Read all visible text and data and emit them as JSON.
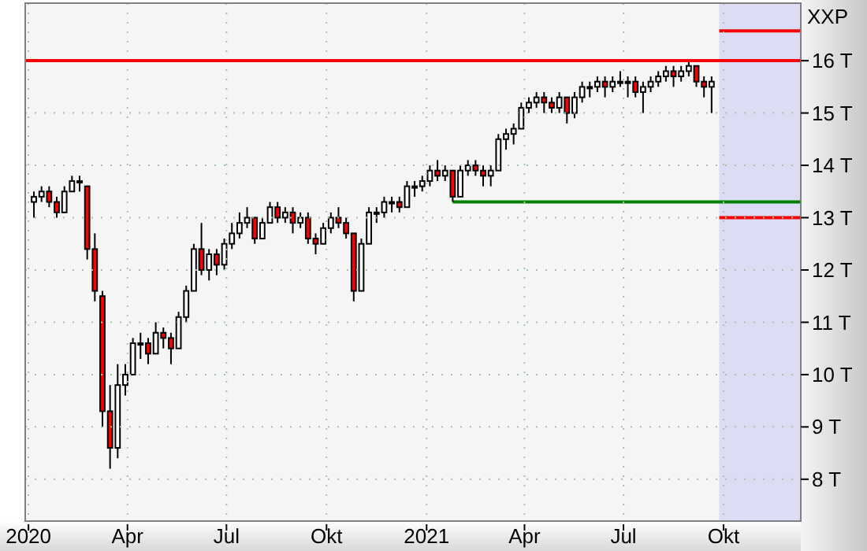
{
  "chart_data": {
    "type": "candlestick",
    "title": "XXP",
    "x": [
      "2020-01-06",
      "2020-01-13",
      "2020-01-20",
      "2020-01-27",
      "2020-02-03",
      "2020-02-10",
      "2020-02-17",
      "2020-02-24",
      "2020-03-02",
      "2020-03-09",
      "2020-03-16",
      "2020-03-23",
      "2020-03-30",
      "2020-04-06",
      "2020-04-13",
      "2020-04-20",
      "2020-04-27",
      "2020-05-04",
      "2020-05-11",
      "2020-05-18",
      "2020-05-25",
      "2020-06-01",
      "2020-06-08",
      "2020-06-15",
      "2020-06-22",
      "2020-06-29",
      "2020-07-06",
      "2020-07-13",
      "2020-07-20",
      "2020-07-27",
      "2020-08-03",
      "2020-08-10",
      "2020-08-17",
      "2020-08-24",
      "2020-08-31",
      "2020-09-07",
      "2020-09-14",
      "2020-09-21",
      "2020-09-28",
      "2020-10-05",
      "2020-10-12",
      "2020-10-19",
      "2020-10-26",
      "2020-11-02",
      "2020-11-09",
      "2020-11-16",
      "2020-11-23",
      "2020-11-30",
      "2020-12-07",
      "2020-12-14",
      "2020-12-21",
      "2020-12-28",
      "2021-01-04",
      "2021-01-11",
      "2021-01-18",
      "2021-01-25",
      "2021-02-01",
      "2021-02-08",
      "2021-02-15",
      "2021-02-22",
      "2021-03-01",
      "2021-03-08",
      "2021-03-15",
      "2021-03-22",
      "2021-03-29",
      "2021-04-05",
      "2021-04-12",
      "2021-04-19",
      "2021-04-26",
      "2021-05-03",
      "2021-05-10",
      "2021-05-17",
      "2021-05-24",
      "2021-05-31",
      "2021-06-07",
      "2021-06-14",
      "2021-06-21",
      "2021-06-28",
      "2021-07-05",
      "2021-07-12",
      "2021-07-19",
      "2021-07-26",
      "2021-08-02",
      "2021-08-09",
      "2021-08-16",
      "2021-08-23",
      "2021-08-30",
      "2021-09-06",
      "2021-09-13",
      "2021-09-20"
    ],
    "ohlc": [
      [
        13.3,
        13.5,
        13.0,
        13.4
      ],
      [
        13.4,
        13.6,
        13.3,
        13.5
      ],
      [
        13.5,
        13.6,
        13.2,
        13.3
      ],
      [
        13.3,
        13.4,
        13.0,
        13.1
      ],
      [
        13.1,
        13.6,
        13.1,
        13.5
      ],
      [
        13.5,
        13.8,
        13.5,
        13.7
      ],
      [
        13.7,
        13.8,
        13.5,
        13.7
      ],
      [
        13.6,
        13.6,
        12.2,
        12.4
      ],
      [
        12.4,
        12.7,
        11.4,
        11.6
      ],
      [
        11.5,
        11.6,
        9.0,
        9.3
      ],
      [
        9.3,
        9.8,
        8.2,
        8.6
      ],
      [
        8.6,
        10.2,
        8.4,
        9.8
      ],
      [
        9.8,
        10.2,
        9.6,
        10.0
      ],
      [
        10.0,
        10.7,
        10.0,
        10.6
      ],
      [
        10.6,
        10.8,
        10.3,
        10.6
      ],
      [
        10.6,
        10.7,
        10.2,
        10.4
      ],
      [
        10.4,
        11.0,
        10.4,
        10.8
      ],
      [
        10.8,
        10.9,
        10.5,
        10.7
      ],
      [
        10.7,
        10.8,
        10.2,
        10.5
      ],
      [
        10.5,
        11.2,
        10.5,
        11.1
      ],
      [
        11.1,
        11.7,
        11.0,
        11.6
      ],
      [
        11.6,
        12.5,
        11.6,
        12.4
      ],
      [
        12.4,
        12.9,
        11.9,
        12.0
      ],
      [
        12.0,
        12.4,
        11.8,
        12.3
      ],
      [
        12.3,
        12.4,
        11.9,
        12.1
      ],
      [
        12.1,
        12.6,
        12.0,
        12.5
      ],
      [
        12.5,
        12.9,
        12.4,
        12.7
      ],
      [
        12.7,
        13.1,
        12.6,
        12.9
      ],
      [
        12.9,
        13.2,
        12.8,
        13.0
      ],
      [
        13.0,
        13.0,
        12.5,
        12.6
      ],
      [
        12.6,
        13.0,
        12.6,
        12.9
      ],
      [
        12.9,
        13.3,
        12.9,
        13.2
      ],
      [
        13.2,
        13.3,
        12.9,
        13.0
      ],
      [
        13.0,
        13.2,
        12.9,
        13.1
      ],
      [
        13.1,
        13.2,
        12.7,
        12.9
      ],
      [
        12.9,
        13.1,
        12.8,
        13.0
      ],
      [
        13.0,
        13.1,
        12.5,
        12.6
      ],
      [
        12.6,
        12.7,
        12.3,
        12.5
      ],
      [
        12.5,
        12.9,
        12.5,
        12.8
      ],
      [
        12.8,
        13.1,
        12.7,
        13.0
      ],
      [
        13.0,
        13.2,
        12.8,
        12.9
      ],
      [
        12.9,
        13.0,
        12.6,
        12.7
      ],
      [
        12.7,
        12.7,
        11.4,
        11.6
      ],
      [
        11.6,
        12.6,
        11.6,
        12.5
      ],
      [
        12.5,
        13.2,
        12.5,
        13.1
      ],
      [
        13.1,
        13.2,
        12.9,
        13.1
      ],
      [
        13.1,
        13.4,
        13.0,
        13.3
      ],
      [
        13.3,
        13.4,
        13.1,
        13.3
      ],
      [
        13.3,
        13.4,
        13.1,
        13.2
      ],
      [
        13.2,
        13.7,
        13.2,
        13.6
      ],
      [
        13.6,
        13.7,
        13.4,
        13.6
      ],
      [
        13.6,
        13.8,
        13.5,
        13.7
      ],
      [
        13.7,
        14.0,
        13.6,
        13.9
      ],
      [
        13.9,
        14.1,
        13.7,
        13.8
      ],
      [
        13.8,
        14.0,
        13.7,
        13.9
      ],
      [
        13.9,
        13.9,
        13.3,
        13.4
      ],
      [
        13.4,
        14.0,
        13.4,
        13.9
      ],
      [
        13.9,
        14.1,
        13.8,
        14.0
      ],
      [
        14.0,
        14.1,
        13.8,
        13.9
      ],
      [
        13.9,
        14.0,
        13.6,
        13.8
      ],
      [
        13.8,
        14.0,
        13.6,
        13.9
      ],
      [
        13.9,
        14.6,
        13.9,
        14.5
      ],
      [
        14.5,
        14.7,
        14.3,
        14.6
      ],
      [
        14.6,
        14.8,
        14.4,
        14.7
      ],
      [
        14.7,
        15.2,
        14.7,
        15.1
      ],
      [
        15.1,
        15.3,
        15.0,
        15.2
      ],
      [
        15.2,
        15.4,
        15.1,
        15.3
      ],
      [
        15.3,
        15.4,
        15.0,
        15.2
      ],
      [
        15.2,
        15.3,
        15.0,
        15.1
      ],
      [
        15.1,
        15.4,
        15.0,
        15.3
      ],
      [
        15.3,
        15.3,
        14.8,
        15.0
      ],
      [
        15.0,
        15.4,
        14.9,
        15.3
      ],
      [
        15.3,
        15.6,
        15.2,
        15.5
      ],
      [
        15.5,
        15.6,
        15.3,
        15.5
      ],
      [
        15.5,
        15.7,
        15.4,
        15.6
      ],
      [
        15.6,
        15.7,
        15.3,
        15.5
      ],
      [
        15.5,
        15.7,
        15.4,
        15.6
      ],
      [
        15.6,
        15.8,
        15.5,
        15.6
      ],
      [
        15.6,
        15.7,
        15.3,
        15.6
      ],
      [
        15.6,
        15.7,
        15.3,
        15.4
      ],
      [
        15.4,
        15.6,
        15.0,
        15.5
      ],
      [
        15.5,
        15.7,
        15.4,
        15.6
      ],
      [
        15.6,
        15.8,
        15.5,
        15.7
      ],
      [
        15.7,
        15.9,
        15.6,
        15.8
      ],
      [
        15.8,
        15.9,
        15.5,
        15.7
      ],
      [
        15.7,
        15.9,
        15.6,
        15.8
      ],
      [
        15.8,
        16.0,
        15.7,
        15.9
      ],
      [
        15.9,
        15.9,
        15.5,
        15.6
      ],
      [
        15.6,
        15.7,
        15.3,
        15.5
      ],
      [
        15.5,
        15.7,
        15.0,
        15.6
      ]
    ],
    "xlim": [
      "2019-12-29",
      "2021-12-11"
    ],
    "xticks": [
      {
        "value": "2020-01-01",
        "label": "2020"
      },
      {
        "value": "2020-04-01",
        "label": "Apr"
      },
      {
        "value": "2020-07-01",
        "label": "Jul"
      },
      {
        "value": "2020-10-01",
        "label": "Okt"
      },
      {
        "value": "2021-01-01",
        "label": "2021"
      },
      {
        "value": "2021-04-01",
        "label": "Apr"
      },
      {
        "value": "2021-07-01",
        "label": "Jul"
      },
      {
        "value": "2021-10-01",
        "label": "Okt"
      }
    ],
    "ylim": [
      7.2,
      17.1
    ],
    "yticks": [
      {
        "value": 8,
        "label": "8 T"
      },
      {
        "value": 9,
        "label": "9 T"
      },
      {
        "value": 10,
        "label": "10 T"
      },
      {
        "value": 11,
        "label": "11 T"
      },
      {
        "value": 12,
        "label": "12 T"
      },
      {
        "value": 13,
        "label": "13 T"
      },
      {
        "value": 14,
        "label": "14 T"
      },
      {
        "value": 15,
        "label": "15 T"
      },
      {
        "value": 16,
        "label": "16 T"
      }
    ],
    "grid": true,
    "ref_lines": [
      {
        "axis": "y",
        "value": 16,
        "color": "#ff0000"
      }
    ],
    "series": [
      {
        "type": "line",
        "color": "#ff0000",
        "x": [
          "2021-09-27",
          "2021-12-11"
        ],
        "values": [
          16.57,
          16.57
        ]
      },
      {
        "type": "line",
        "color": "#ff0000",
        "x": [
          "2021-09-27",
          "2021-12-11"
        ],
        "values": [
          13.0,
          13.0
        ]
      },
      {
        "type": "line",
        "color": "#008000",
        "x": [
          "2021-01-25",
          "2021-12-11"
        ],
        "values": [
          13.3,
          13.3
        ]
      }
    ],
    "bands": [
      {
        "axis": "x",
        "from": "2021-09-27",
        "to": "2021-12-11",
        "color": "#dcdcf4"
      }
    ]
  }
}
